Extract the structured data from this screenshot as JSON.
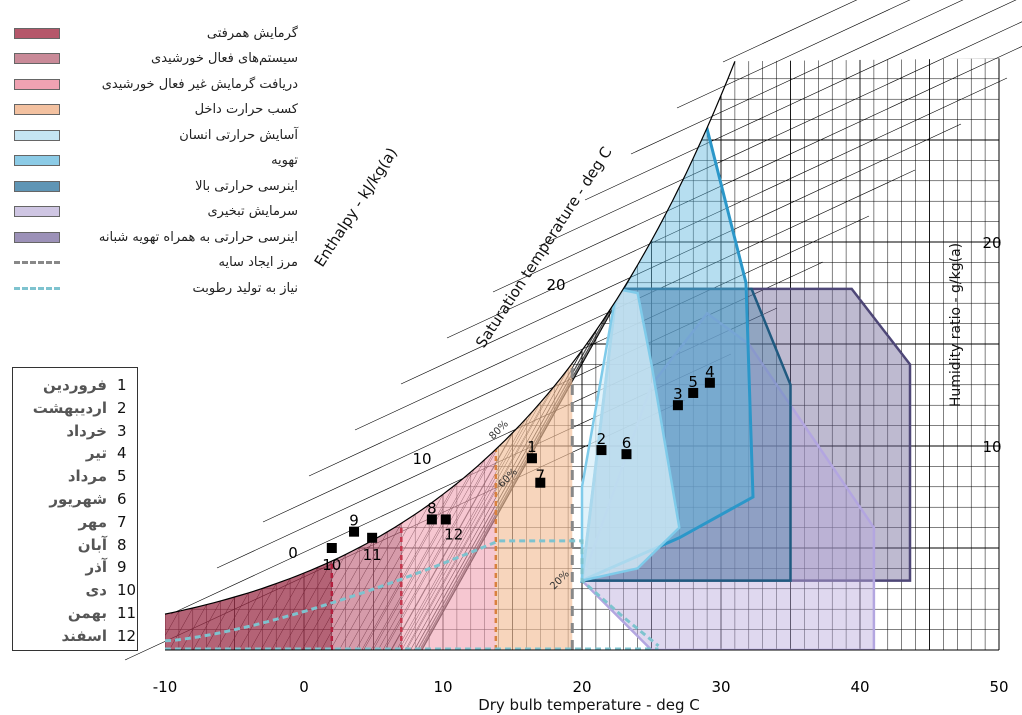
{
  "chart_data": {
    "type": "psychrometric",
    "xlabel": "Dry bulb temperature - deg C",
    "ylabel": "Humidity ratio - g/kg(a)",
    "enthalpy_label": "Enthalpy - kJ/kg(a)",
    "saturation_label": "Saturation temperature - deg C",
    "xlim": [
      -10,
      50
    ],
    "ylim": [
      0,
      30
    ],
    "x_ticks": [
      "-10",
      "0",
      "10",
      "20",
      "30",
      "40",
      "50"
    ],
    "y_ticks": [
      "10",
      "20"
    ],
    "enthalpy_ticks": [
      "0",
      "10",
      "20"
    ],
    "rh_labels": [
      "80%",
      "60%",
      "20%"
    ],
    "legend": [
      {
        "label": "گرمایش همرفتی",
        "color": "#b5576a"
      },
      {
        "label": "سیستم‌های فعال خورشیدی",
        "color": "#c98a98"
      },
      {
        "label": "دریافت گرمایش غیر فعال خورشیدی",
        "color": "#f0a2b2"
      },
      {
        "label": "کسب حرارت داخل",
        "color": "#f3c1a0"
      },
      {
        "label": "آسایش حرارتی انسان",
        "color": "#c5e5f3"
      },
      {
        "label": "تهویه",
        "color": "#8ccbe6"
      },
      {
        "label": "اینرسی حرارتی بالا",
        "color": "#5f95b5"
      },
      {
        "label": "سرمایش تبخیری",
        "color": "#cfc6e3"
      },
      {
        "label": "اینرسی حرارتی به همراه تهویه شبانه",
        "color": "#9c91b8"
      },
      {
        "label": "مرز ایجاد سایه",
        "style": "dash-grey"
      },
      {
        "label": "نیاز به تولید رطوبت",
        "style": "dash-teal"
      }
    ],
    "zone_boundaries_dbt": [
      {
        "name": "convective-heating-boundary",
        "dbt": 2
      },
      {
        "name": "active-solar-boundary",
        "dbt": 7
      },
      {
        "name": "passive-solar-boundary",
        "dbt": 13.8
      },
      {
        "name": "internal-gain-boundary",
        "dbt": 19.3
      }
    ],
    "points": [
      {
        "label": "1",
        "dbt": 16.4,
        "w": 9.4
      },
      {
        "label": "2",
        "dbt": 21.4,
        "w": 9.8
      },
      {
        "label": "3",
        "dbt": 26.9,
        "w": 12.0
      },
      {
        "label": "4",
        "dbt": 29.2,
        "w": 13.1
      },
      {
        "label": "5",
        "dbt": 28.0,
        "w": 12.6
      },
      {
        "label": "6",
        "dbt": 23.2,
        "w": 9.6
      },
      {
        "label": "7",
        "dbt": 17.0,
        "w": 8.2
      },
      {
        "label": "8",
        "dbt": 9.2,
        "w": 6.4
      },
      {
        "label": "9",
        "dbt": 3.6,
        "w": 5.8
      },
      {
        "label": "10",
        "dbt": 2.0,
        "w": 5.0
      },
      {
        "label": "11",
        "dbt": 4.9,
        "w": 5.5
      },
      {
        "label": "12",
        "dbt": 10.2,
        "w": 6.4
      }
    ],
    "months": [
      {
        "num": "1",
        "name": "فروردین"
      },
      {
        "num": "2",
        "name": "اردیبهشت"
      },
      {
        "num": "3",
        "name": "خرداد"
      },
      {
        "num": "4",
        "name": "تیر"
      },
      {
        "num": "5",
        "name": "مرداد"
      },
      {
        "num": "6",
        "name": "شهریور"
      },
      {
        "num": "7",
        "name": "مهر"
      },
      {
        "num": "8",
        "name": "آبان"
      },
      {
        "num": "9",
        "name": "آذر"
      },
      {
        "num": "10",
        "name": "دی"
      },
      {
        "num": "11",
        "name": "بهمن"
      },
      {
        "num": "12",
        "name": "اسفند"
      }
    ]
  }
}
